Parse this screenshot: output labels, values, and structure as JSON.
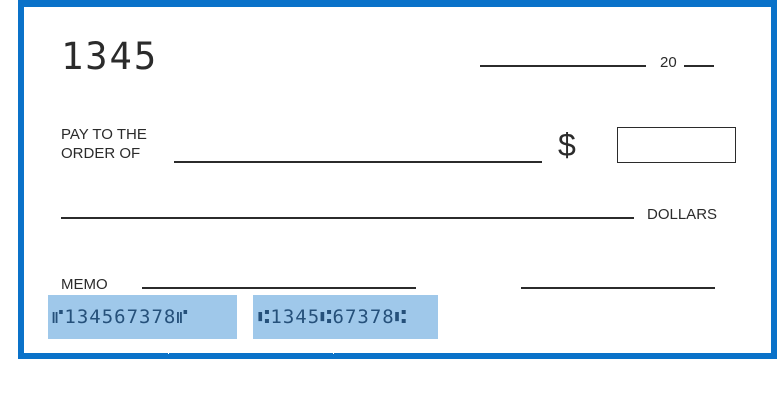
{
  "check": {
    "number": "1345",
    "date_prefix": "20",
    "pay_to_line1": "PAY TO THE",
    "pay_to_line2": "ORDER OF",
    "currency_symbol": "$",
    "dollars_label": "DOLLARS",
    "memo_label": "MEMO",
    "routing_number": "⑈134567378⑈",
    "account_number": "⑆1345⑆67378⑆"
  },
  "colors": {
    "border": "#0a72c9",
    "micr_highlight": "#9fc8ea",
    "ink": "#2b2b2b"
  }
}
